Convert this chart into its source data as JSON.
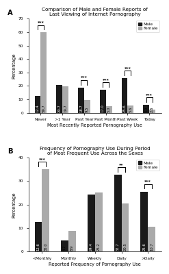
{
  "panel_A": {
    "title": "Comparison of Male and Female Reports of\nLast Viewing of Internet Pornography",
    "xlabel": "Most Recently Reported Pornography Use",
    "ylabel": "Percentage",
    "categories": [
      "Never",
      ">1 Year",
      "Past Year",
      "Past Month",
      "Past Week",
      "Today"
    ],
    "male_values": [
      12.4,
      20.7,
      18.7,
      17.0,
      25.6,
      5.9
    ],
    "female_values": [
      59.7,
      19.7,
      9.5,
      5.0,
      5.6,
      2.6
    ],
    "ylim": [
      0,
      70
    ],
    "yticks": [
      0,
      10,
      20,
      30,
      40,
      50,
      60,
      70
    ],
    "significance": [
      "***",
      null,
      "***",
      "***",
      "***",
      "***"
    ]
  },
  "panel_B": {
    "title": "Frequency of Pornography Use During Period\nof Most Frequent Use Across the Sexes",
    "xlabel": "Reported Frequency of Pornography Use",
    "ylabel": "Percentage",
    "categories": [
      "<Monthly",
      "Monthly",
      "Weekly",
      "Daily",
      ">Daily"
    ],
    "male_values": [
      12.6,
      4.7,
      24.4,
      32.7,
      25.6
    ],
    "female_values": [
      35.0,
      8.9,
      25.2,
      20.5,
      10.7
    ],
    "ylim": [
      0,
      40
    ],
    "yticks": [
      0,
      10,
      20,
      30,
      40
    ],
    "significance": [
      "***",
      null,
      null,
      "**",
      "***"
    ]
  },
  "male_color": "#1a1a1a",
  "female_color": "#aaaaaa",
  "bar_width": 0.28,
  "label_fontsize": 3.8,
  "title_fontsize": 5.2,
  "axis_fontsize": 4.8,
  "tick_fontsize": 4.2,
  "legend_fontsize": 4.2,
  "sig_fontsize": 4.5
}
